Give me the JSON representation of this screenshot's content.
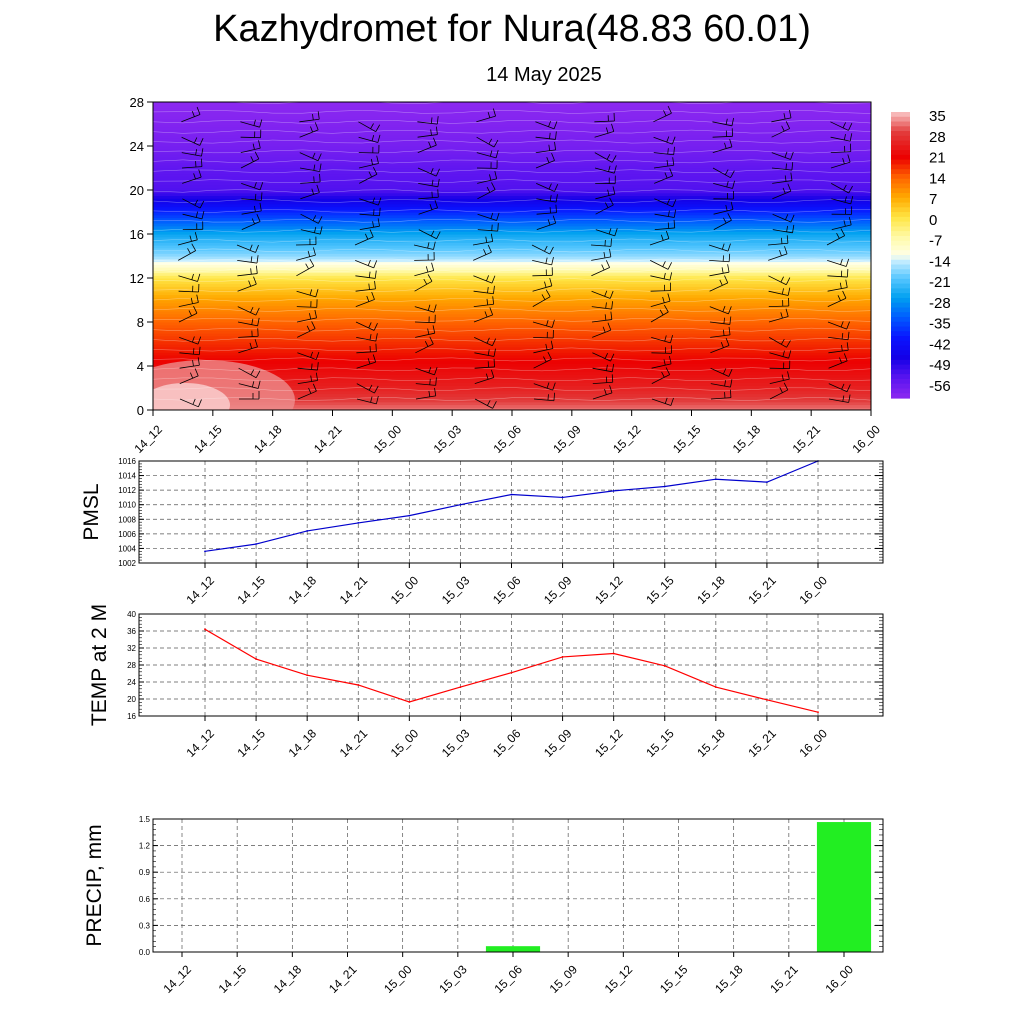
{
  "header": {
    "title": "Kazhydromet for Nura(48.83 60.01)",
    "subtitle": "14 May 2025"
  },
  "time_labels": [
    "14_12",
    "14_15",
    "14_18",
    "14_21",
    "15_00",
    "15_03",
    "15_06",
    "15_09",
    "15_12",
    "15_15",
    "15_18",
    "15_21",
    "16_00"
  ],
  "chart_data": [
    {
      "type": "heatmap",
      "title": "",
      "y_ticks": [
        "0",
        "4",
        "8",
        "12",
        "16",
        "20",
        "24",
        "28"
      ],
      "ylim": [
        0,
        28
      ],
      "x": [
        "14_12",
        "14_15",
        "14_18",
        "14_21",
        "15_00",
        "15_03",
        "15_06",
        "15_09",
        "15_12",
        "15_15",
        "15_18",
        "15_21",
        "16_00"
      ],
      "colorbar_labels": [
        "35",
        "28",
        "21",
        "14",
        "7",
        "0",
        "-7",
        "-14",
        "-21",
        "-28",
        "-35",
        "-42",
        "-49",
        "-56"
      ],
      "colorbar_range": [
        -63,
        37
      ],
      "profile": [
        {
          "level": 0,
          "value": 33
        },
        {
          "level": 2,
          "value": 26
        },
        {
          "level": 4,
          "value": 22
        },
        {
          "level": 8,
          "value": 14
        },
        {
          "level": 10,
          "value": 8
        },
        {
          "level": 12,
          "value": 0
        },
        {
          "level": 13,
          "value": -10
        },
        {
          "level": 14,
          "value": -18
        },
        {
          "level": 16,
          "value": -27
        },
        {
          "level": 18,
          "value": -40
        },
        {
          "level": 20,
          "value": -55
        },
        {
          "level": 22,
          "value": -57
        },
        {
          "level": 24,
          "value": -60
        },
        {
          "level": 28,
          "value": -63
        }
      ],
      "wind_barbs": true
    },
    {
      "type": "line",
      "ylabel": "PMSL",
      "x": [
        "14_12",
        "14_15",
        "14_18",
        "14_21",
        "15_00",
        "15_03",
        "15_06",
        "15_09",
        "15_12",
        "15_15",
        "15_18",
        "15_21",
        "16_00"
      ],
      "values": [
        1003.6,
        1004.6,
        1006.4,
        1007.5,
        1008.5,
        1010.0,
        1011.4,
        1011.0,
        1011.9,
        1012.5,
        1013.5,
        1013.1,
        1016.0
      ],
      "ylim": [
        1002,
        1016
      ],
      "y_ticks": [
        "1002",
        "1004",
        "1006",
        "1008",
        "1010",
        "1012",
        "1014",
        "1016"
      ],
      "color": "#0000cc",
      "grid": true
    },
    {
      "type": "line",
      "ylabel": "TEMP at 2 M",
      "x": [
        "14_12",
        "14_15",
        "14_18",
        "14_21",
        "15_00",
        "15_03",
        "15_06",
        "15_09",
        "15_12",
        "15_15",
        "15_18",
        "15_21",
        "16_00"
      ],
      "values": [
        36.4,
        29.4,
        25.6,
        23.3,
        19.3,
        22.8,
        26.2,
        29.9,
        30.7,
        27.8,
        22.8,
        19.8,
        16.9
      ],
      "ylim": [
        16,
        40
      ],
      "y_ticks": [
        "16",
        "20",
        "24",
        "28",
        "32",
        "36",
        "40"
      ],
      "color": "#ff0000",
      "grid": true
    },
    {
      "type": "bar",
      "ylabel": "PRECIP, mm",
      "categories": [
        "14_12",
        "14_15",
        "14_18",
        "14_21",
        "15_00",
        "15_03",
        "15_06",
        "15_09",
        "15_12",
        "15_15",
        "15_18",
        "15_21",
        "16_00"
      ],
      "values": [
        0,
        0,
        0,
        0,
        0,
        0,
        0.06,
        0,
        0,
        0,
        0,
        0,
        1.46
      ],
      "ylim": [
        0,
        1.5
      ],
      "y_ticks": [
        "0.0",
        "0.3",
        "0.6",
        "0.9",
        "1.2",
        "1.5"
      ],
      "color": "#22ee22",
      "grid": true
    }
  ]
}
